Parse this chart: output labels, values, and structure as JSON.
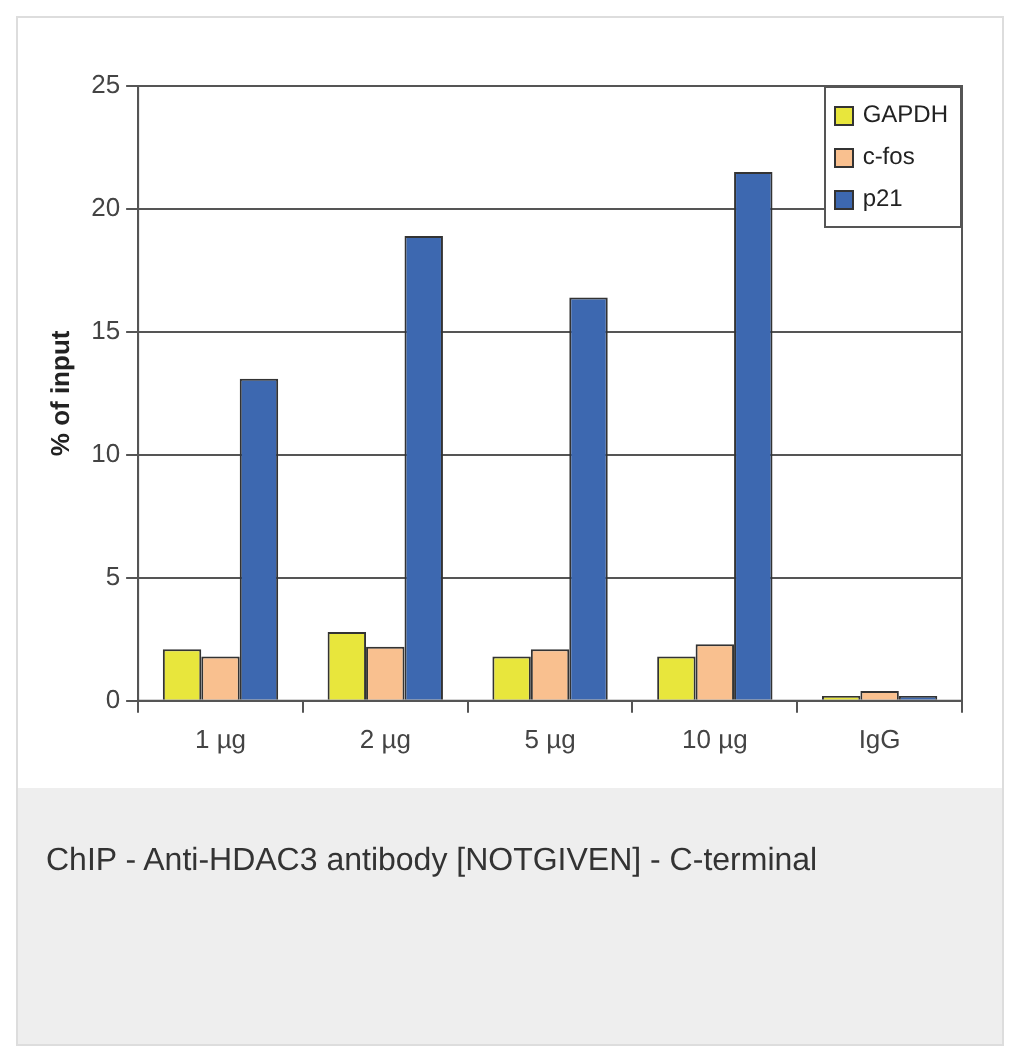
{
  "chart_data": {
    "type": "bar",
    "ylabel": "% of input",
    "categories": [
      "1 µg",
      "2 µg",
      "5 µg",
      "10 µg",
      "IgG"
    ],
    "series": [
      {
        "name": "GAPDH",
        "color": "#e8e63c",
        "values": [
          2.1,
          2.8,
          1.8,
          1.8,
          0.2
        ]
      },
      {
        "name": "c-fos",
        "color": "#f9c08f",
        "values": [
          1.8,
          2.2,
          2.1,
          2.3,
          0.4
        ]
      },
      {
        "name": "p21",
        "color": "#3d68b0",
        "values": [
          13.1,
          18.9,
          16.4,
          21.5,
          0.2
        ]
      }
    ],
    "ylim": [
      0,
      25
    ],
    "yticks": [
      0,
      5,
      10,
      15,
      20,
      25
    ],
    "grid": "y",
    "legend": "top right",
    "annotations": [
      "ChIP - Anti-HDAC3 antibody [NOTGIVEN] - C-terminal"
    ]
  }
}
